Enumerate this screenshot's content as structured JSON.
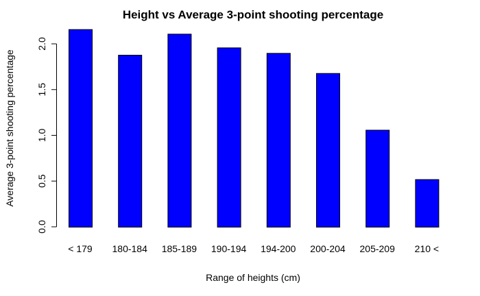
{
  "chart_data": {
    "type": "bar",
    "title": "Height vs Average 3-point shooting percentage",
    "xlabel": "Range of heights (cm)",
    "ylabel": "Average 3-point shooting percentage",
    "categories": [
      "< 179",
      "180-184",
      "185-189",
      "190-194",
      "194-200",
      "200-204",
      "205-209",
      "210 <"
    ],
    "values": [
      2.16,
      1.88,
      2.11,
      1.96,
      1.9,
      1.68,
      1.06,
      0.52
    ],
    "ylim": [
      0,
      2.2
    ],
    "yticks": [
      0.0,
      0.5,
      1.0,
      1.5,
      2.0
    ],
    "ytick_labels": [
      "0.0",
      "0.5",
      "1.0",
      "1.5",
      "2.0"
    ],
    "grid": false,
    "bar_color": "#0000ff",
    "bar_border": "#000000"
  }
}
